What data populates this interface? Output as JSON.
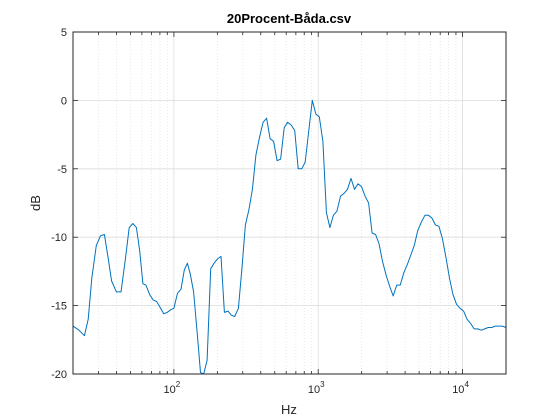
{
  "chart_data": {
    "type": "line",
    "title": "20Procent-Båda.csv",
    "xlabel": "Hz",
    "ylabel": "dB",
    "xscale": "log",
    "xlim": [
      20,
      20000
    ],
    "ylim": [
      -20,
      5
    ],
    "grid": true,
    "line_color": "#0072BD",
    "yticks": [
      5,
      0,
      -5,
      -10,
      -15,
      -20
    ],
    "xticks": [
      {
        "base": "10",
        "exp": "2",
        "value": 100
      },
      {
        "base": "10",
        "exp": "3",
        "value": 1000
      },
      {
        "base": "10",
        "exp": "4",
        "value": 10000
      }
    ],
    "series": [
      {
        "x": [
          20,
          22,
          24,
          25.5,
          27,
          29,
          31,
          33,
          35,
          37,
          40,
          43,
          46,
          49,
          52,
          55,
          58,
          61,
          64,
          68,
          72,
          76,
          80,
          85,
          90,
          95,
          100,
          106,
          112,
          118,
          124,
          130,
          137,
          145,
          153,
          161,
          170,
          180,
          190,
          200,
          212,
          224,
          237,
          250,
          264,
          280,
          296,
          313,
          331,
          350,
          370,
          392,
          415,
          439,
          464,
          491,
          519,
          549,
          581,
          614,
          650,
          687,
          727,
          769,
          813,
          860,
          910,
          963,
          1018,
          1077,
          1139,
          1205,
          1274,
          1348,
          1426,
          1508,
          1595,
          1687,
          1784,
          1887,
          1996,
          2111,
          2233,
          2362,
          2498,
          2642,
          2795,
          2956,
          3127,
          3307,
          3498,
          3700,
          3914,
          4140,
          4379,
          4632,
          4899,
          5182,
          5481,
          5797,
          6132,
          6486,
          6860,
          7256,
          7675,
          8118,
          8587,
          9083,
          9607,
          10162,
          10749,
          11370,
          12026,
          12721,
          13455,
          14232,
          15054,
          15923,
          16843,
          17816,
          18844,
          20000
        ],
        "y": [
          -16.5,
          -16.8,
          -17.2,
          -16.0,
          -13.0,
          -10.6,
          -9.9,
          -9.8,
          -11.5,
          -13.2,
          -14.0,
          -14.0,
          -11.7,
          -9.3,
          -9.0,
          -9.3,
          -11.0,
          -13.4,
          -13.5,
          -14.2,
          -14.6,
          -14.7,
          -15.1,
          -15.6,
          -15.5,
          -15.3,
          -15.2,
          -14.1,
          -13.8,
          -12.4,
          -11.9,
          -12.7,
          -14.0,
          -17.0,
          -19.9,
          -20.0,
          -19.0,
          -12.3,
          -11.9,
          -11.6,
          -11.4,
          -15.5,
          -15.4,
          -15.7,
          -15.8,
          -15.2,
          -12.3,
          -9.1,
          -8.0,
          -6.5,
          -4.0,
          -2.7,
          -1.6,
          -1.3,
          -2.8,
          -3.0,
          -4.4,
          -4.3,
          -2.0,
          -1.6,
          -1.8,
          -2.2,
          -5.0,
          -5.0,
          -4.5,
          -2.2,
          0.0,
          -1.0,
          -1.2,
          -3.0,
          -8.2,
          -9.3,
          -8.4,
          -8.1,
          -7.0,
          -6.8,
          -6.5,
          -5.7,
          -6.5,
          -6.1,
          -6.3,
          -7.0,
          -7.5,
          -9.7,
          -9.8,
          -10.5,
          -11.8,
          -12.8,
          -13.6,
          -14.3,
          -13.5,
          -13.5,
          -12.6,
          -12.0,
          -11.3,
          -10.6,
          -9.5,
          -8.9,
          -8.4,
          -8.4,
          -8.6,
          -9.1,
          -9.2,
          -10.1,
          -11.5,
          -13.0,
          -14.2,
          -14.9,
          -15.2,
          -15.4,
          -16.0,
          -16.3,
          -16.7,
          -16.7,
          -16.8,
          -16.7,
          -16.6,
          -16.6,
          -16.5,
          -16.5,
          -16.5,
          -16.6
        ]
      }
    ]
  }
}
